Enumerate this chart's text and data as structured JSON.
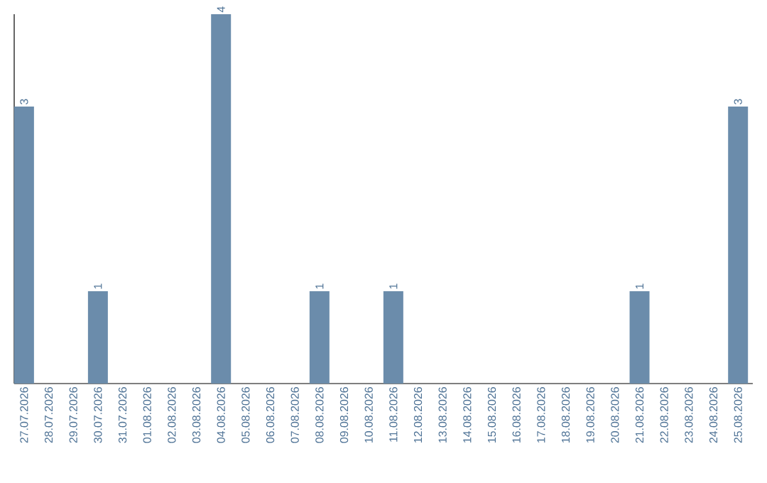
{
  "chart_data": {
    "type": "bar",
    "color": "#6b8cab",
    "categories": [
      "27.07.2026",
      "28.07.2026",
      "29.07.2026",
      "30.07.2026",
      "31.07.2026",
      "01.08.2026",
      "02.08.2026",
      "03.08.2026",
      "04.08.2026",
      "05.08.2026",
      "06.08.2026",
      "07.08.2026",
      "08.08.2026",
      "09.08.2026",
      "10.08.2026",
      "11.08.2026",
      "12.08.2026",
      "13.08.2026",
      "14.08.2026",
      "15.08.2026",
      "16.08.2026",
      "17.08.2026",
      "18.08.2026",
      "19.08.2026",
      "20.08.2026",
      "21.08.2026",
      "22.08.2026",
      "23.08.2026",
      "24.08.2026",
      "25.08.2026"
    ],
    "values": [
      3,
      0,
      0,
      1,
      0,
      0,
      0,
      0,
      4,
      0,
      0,
      0,
      1,
      0,
      0,
      1,
      0,
      0,
      0,
      0,
      0,
      0,
      0,
      0,
      0,
      1,
      0,
      0,
      0,
      3
    ],
    "value_labels": [
      "3",
      null,
      null,
      "1",
      null,
      null,
      null,
      null,
      "4",
      null,
      null,
      null,
      "1",
      null,
      null,
      "1",
      null,
      null,
      null,
      null,
      null,
      null,
      null,
      null,
      null,
      "1",
      null,
      null,
      null,
      "3"
    ]
  }
}
